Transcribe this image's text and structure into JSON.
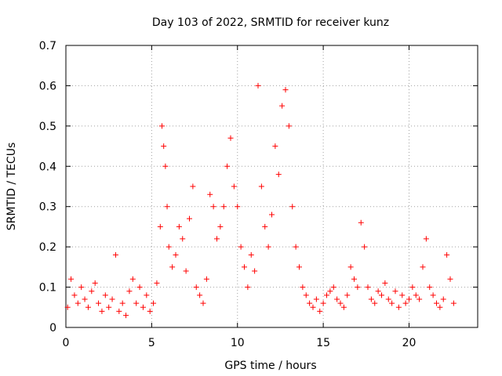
{
  "chart_data": {
    "type": "scatter",
    "title": "Day 103 of 2022, SRMTID for receiver kunz",
    "xlabel": "GPS time / hours",
    "ylabel": "SRMTID / TECUs",
    "xlim": [
      0,
      24
    ],
    "ylim": [
      0,
      0.7
    ],
    "x_ticks": [
      0,
      5,
      10,
      15,
      20
    ],
    "x_tick_labels": [
      "0",
      "5",
      "10",
      "15",
      "20"
    ],
    "y_ticks": [
      0,
      0.1,
      0.2,
      0.3,
      0.4,
      0.5,
      0.6,
      0.7
    ],
    "y_tick_labels": [
      "0",
      "0.1",
      "0.2",
      "0.3",
      "0.4",
      "0.5",
      "0.6",
      "0.7"
    ],
    "grid": true,
    "marker": "+",
    "series": [
      {
        "name": "SRMTID",
        "color": "#ff0000",
        "x": [
          0.1,
          0.3,
          0.5,
          0.7,
          0.9,
          1.1,
          1.3,
          1.5,
          1.7,
          1.9,
          2.1,
          2.3,
          2.5,
          2.7,
          2.9,
          3.1,
          3.3,
          3.5,
          3.7,
          3.9,
          4.1,
          4.3,
          4.5,
          4.7,
          4.9,
          5.1,
          5.3,
          5.5,
          5.6,
          5.7,
          5.8,
          5.9,
          6.0,
          6.2,
          6.4,
          6.6,
          6.8,
          7.0,
          7.2,
          7.4,
          7.6,
          7.8,
          8.0,
          8.2,
          8.4,
          8.6,
          8.8,
          9.0,
          9.2,
          9.4,
          9.6,
          9.8,
          10.0,
          10.2,
          10.4,
          10.6,
          10.8,
          11.0,
          11.2,
          11.4,
          11.6,
          11.8,
          12.0,
          12.2,
          12.4,
          12.6,
          12.8,
          13.0,
          13.2,
          13.4,
          13.6,
          13.8,
          14.0,
          14.2,
          14.4,
          14.6,
          14.8,
          15.0,
          15.2,
          15.4,
          15.6,
          15.8,
          16.0,
          16.2,
          16.4,
          16.6,
          16.8,
          17.0,
          17.2,
          17.4,
          17.6,
          17.8,
          18.0,
          18.2,
          18.4,
          18.6,
          18.8,
          19.0,
          19.2,
          19.4,
          19.6,
          19.8,
          20.0,
          20.2,
          20.4,
          20.6,
          20.8,
          21.0,
          21.2,
          21.4,
          21.6,
          21.8,
          22.0,
          22.2,
          22.4,
          22.6
        ],
        "y": [
          0.05,
          0.12,
          0.08,
          0.06,
          0.1,
          0.07,
          0.05,
          0.09,
          0.11,
          0.06,
          0.04,
          0.08,
          0.05,
          0.07,
          0.18,
          0.04,
          0.06,
          0.03,
          0.09,
          0.12,
          0.06,
          0.1,
          0.05,
          0.08,
          0.04,
          0.06,
          0.11,
          0.25,
          0.5,
          0.45,
          0.4,
          0.3,
          0.2,
          0.15,
          0.18,
          0.25,
          0.22,
          0.14,
          0.27,
          0.35,
          0.1,
          0.08,
          0.06,
          0.12,
          0.33,
          0.3,
          0.22,
          0.25,
          0.3,
          0.4,
          0.47,
          0.35,
          0.3,
          0.2,
          0.15,
          0.1,
          0.18,
          0.14,
          0.6,
          0.35,
          0.25,
          0.2,
          0.28,
          0.45,
          0.38,
          0.55,
          0.59,
          0.5,
          0.3,
          0.2,
          0.15,
          0.1,
          0.08,
          0.06,
          0.05,
          0.07,
          0.04,
          0.06,
          0.08,
          0.09,
          0.1,
          0.07,
          0.06,
          0.05,
          0.08,
          0.15,
          0.12,
          0.1,
          0.26,
          0.2,
          0.1,
          0.07,
          0.06,
          0.09,
          0.08,
          0.11,
          0.07,
          0.06,
          0.09,
          0.05,
          0.08,
          0.06,
          0.07,
          0.1,
          0.08,
          0.07,
          0.15,
          0.22,
          0.1,
          0.08,
          0.06,
          0.05,
          0.07,
          0.18,
          0.12,
          0.06
        ]
      }
    ]
  }
}
